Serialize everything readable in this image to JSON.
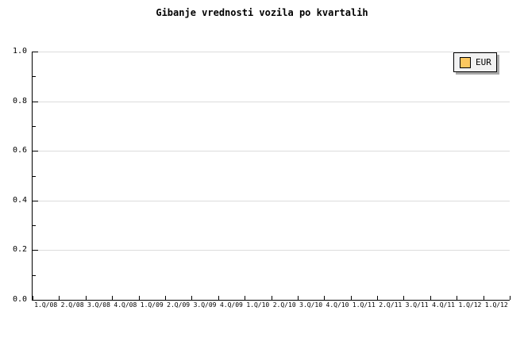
{
  "header": {
    "title": "Gibanje vrednosti vozila po kvartalih"
  },
  "y_axis": {
    "tick_labels": [
      "1.0",
      "0.8",
      "0.6",
      "0.4",
      "0.2",
      "0.0"
    ],
    "minor_ticks_per_major": 1
  },
  "x_axis": {
    "tick_labels": [
      "1.Q/08",
      "2.Q/08",
      "3.Q/08",
      "4.Q/08",
      "1.Q/09",
      "2.Q/09",
      "3.Q/09",
      "4.Q/09",
      "1.Q/10",
      "2.Q/10",
      "3.Q/10",
      "4.Q/10",
      "1.Q/11",
      "2.Q/11",
      "3.Q/11",
      "4.Q/11",
      "1.Q/12",
      "1.Q/12"
    ]
  },
  "grid": {
    "color": "#dcdcdc"
  },
  "legend": {
    "items": [
      {
        "label": "EUR",
        "swatch_color": "#fcc860"
      }
    ],
    "background": "#f2f2f2",
    "border_color": "#000000",
    "shadow_color": "#a8a8a8"
  },
  "colors": {
    "background": "#ffffff",
    "axis": "#000000",
    "text": "#000000"
  },
  "chart_data": {
    "type": "line",
    "title": "Gibanje vrednosti vozila po kvartalih",
    "categories": [
      "1.Q/08",
      "2.Q/08",
      "3.Q/08",
      "4.Q/08",
      "1.Q/09",
      "2.Q/09",
      "3.Q/09",
      "4.Q/09",
      "1.Q/10",
      "2.Q/10",
      "3.Q/10",
      "4.Q/10",
      "1.Q/11",
      "2.Q/11",
      "3.Q/11",
      "4.Q/11",
      "1.Q/12",
      "1.Q/12"
    ],
    "series": [
      {
        "name": "EUR",
        "values": []
      }
    ],
    "xlabel": "",
    "ylabel": "",
    "ylim": [
      0.0,
      1.0
    ],
    "ytick_step": 0.2,
    "grid": true,
    "grid_axis": "y",
    "legend_position": "top-right",
    "plot_is_empty": true
  }
}
